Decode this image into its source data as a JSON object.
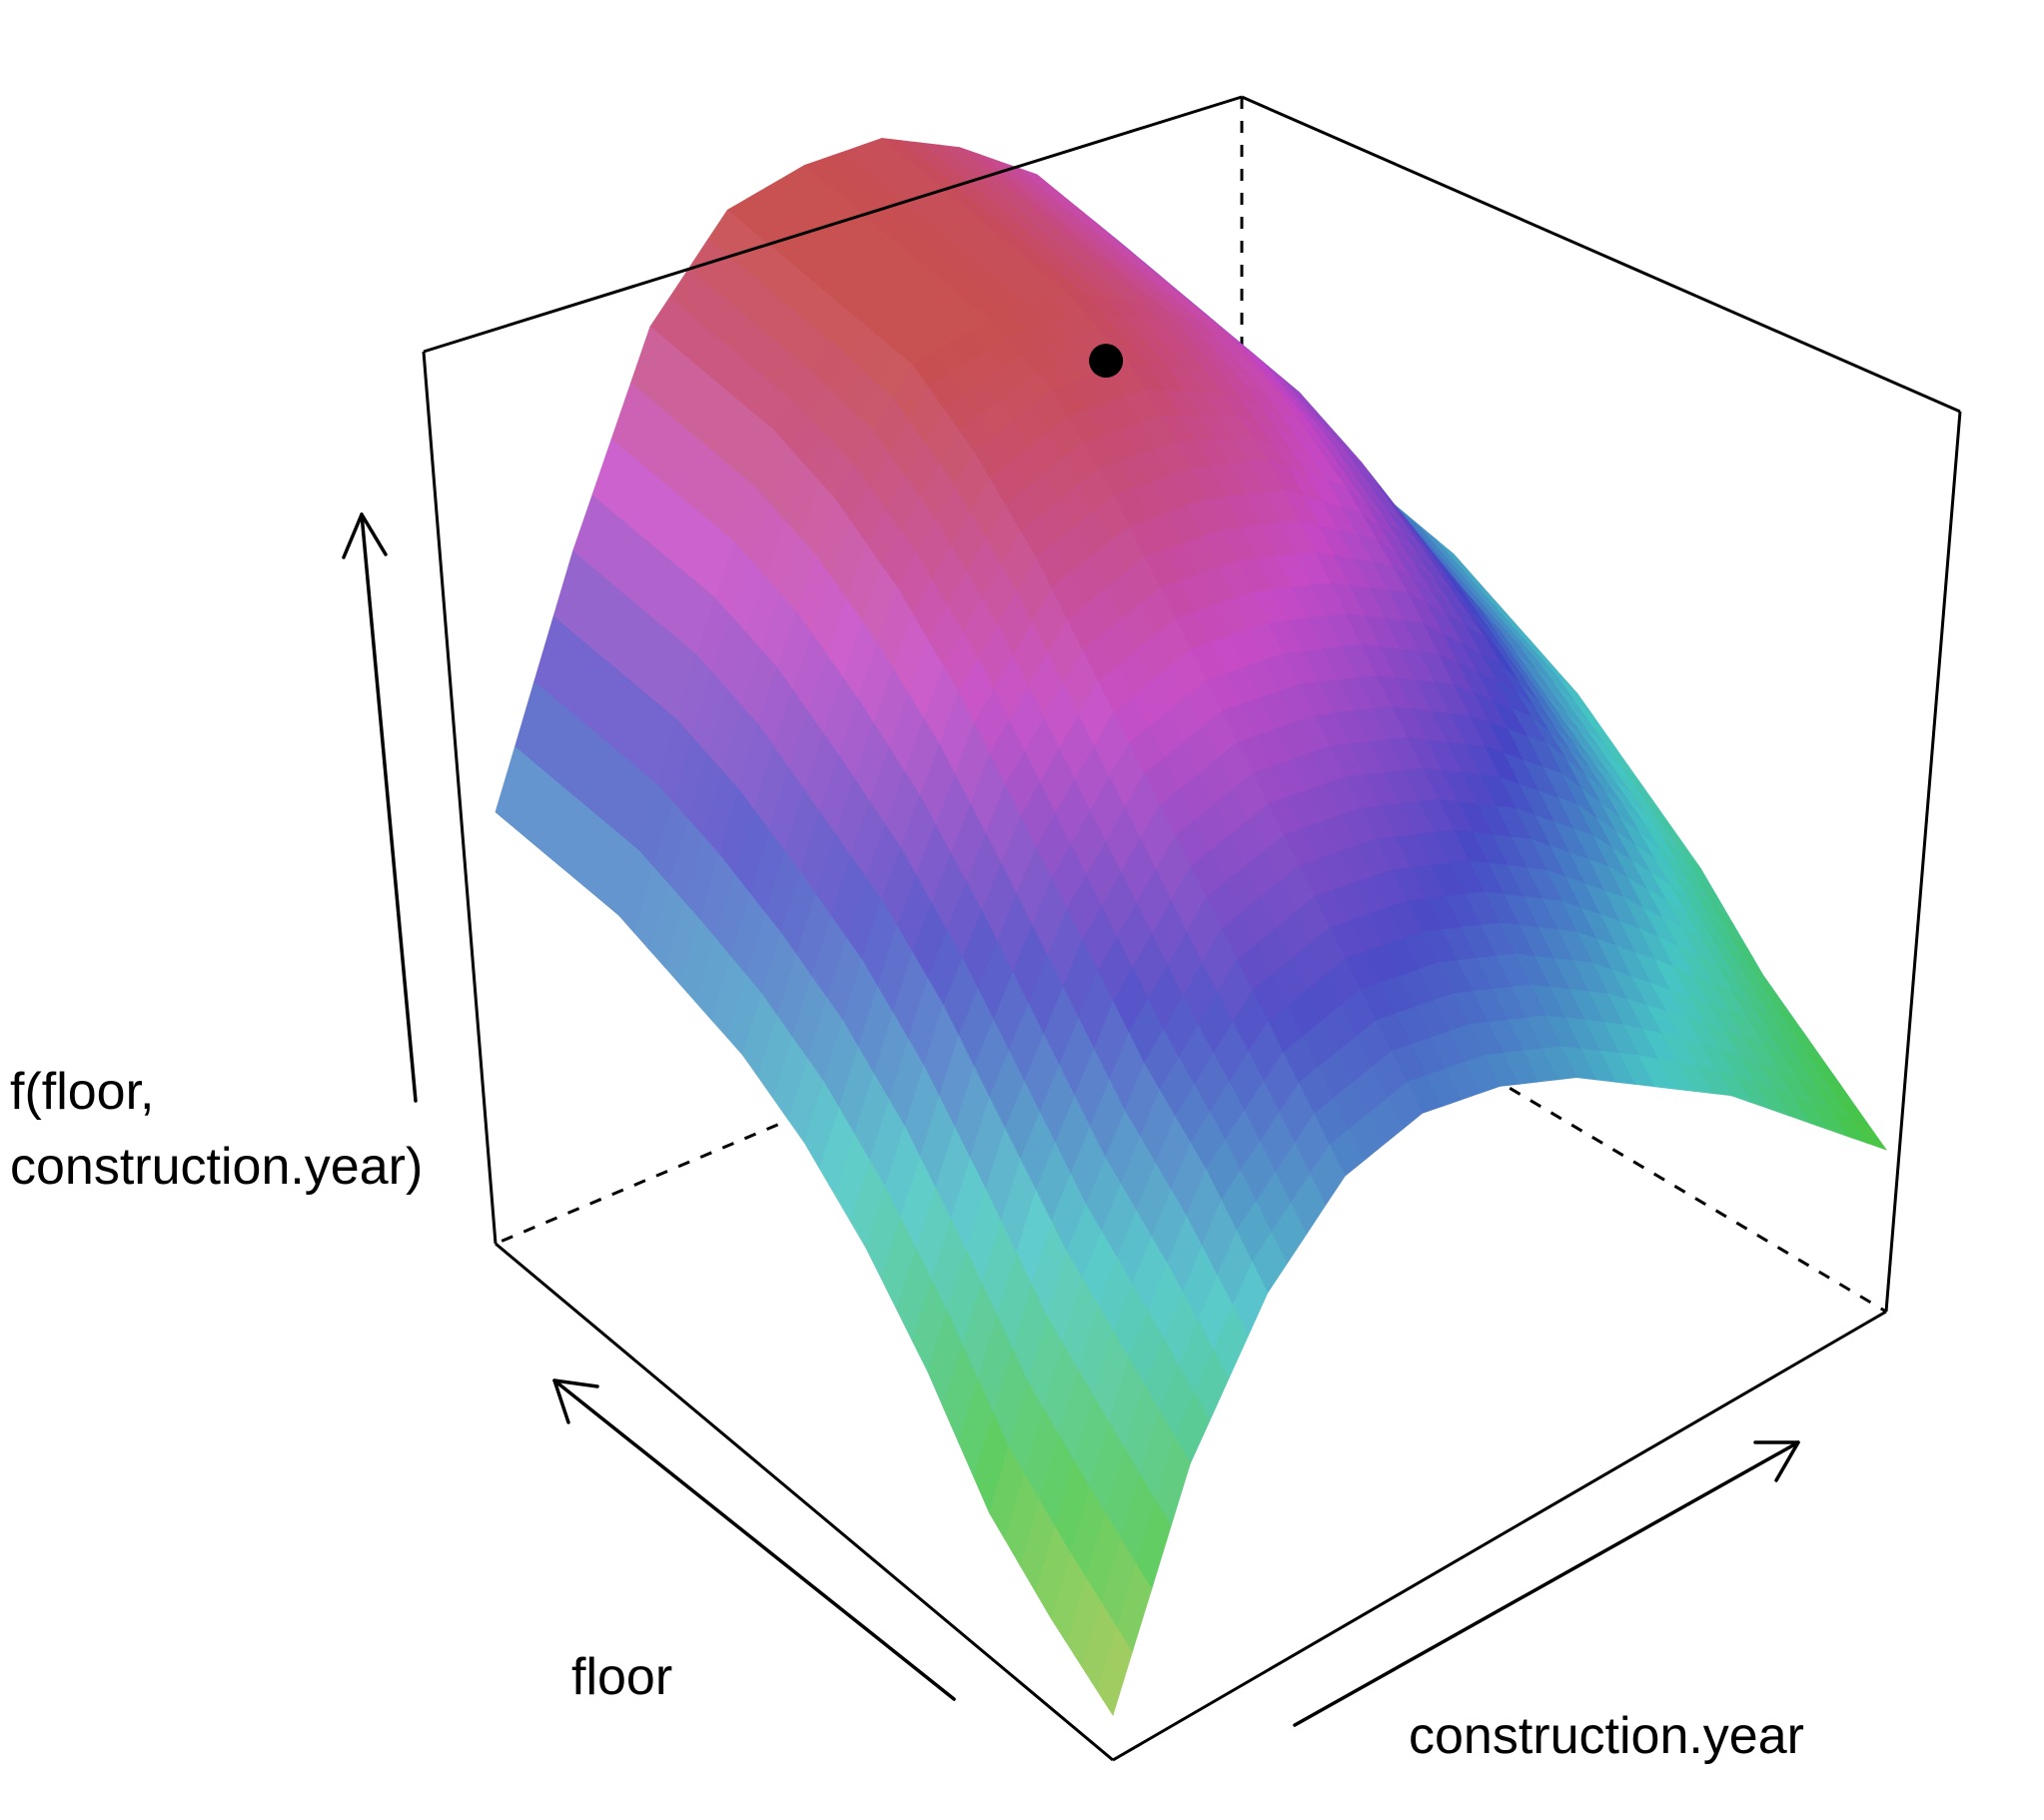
{
  "chart_data": {
    "type": "surface",
    "title": "",
    "xlabel": "floor",
    "ylabel": "construction.year",
    "zlabel_lines": [
      "f(floor,",
      "construction.year)"
    ],
    "x_direction": "increasing toward back-left",
    "y_direction": "increasing toward right",
    "colormap": "rainbow (hue by height)",
    "x": [
      0,
      1,
      2,
      3,
      4,
      5,
      6,
      7,
      8,
      9,
      10
    ],
    "y": [
      0,
      0.1,
      0.2,
      0.3,
      0.4,
      0.5,
      0.6,
      0.7,
      0.8,
      0.9,
      1.0
    ],
    "z": [
      [
        0.05,
        0.28,
        0.42,
        0.5,
        0.52,
        0.5,
        0.46,
        0.4,
        0.34,
        0.26,
        0.18
      ],
      [
        0.1,
        0.34,
        0.5,
        0.58,
        0.6,
        0.58,
        0.54,
        0.48,
        0.4,
        0.32,
        0.22
      ],
      [
        0.16,
        0.4,
        0.56,
        0.66,
        0.68,
        0.66,
        0.62,
        0.56,
        0.48,
        0.38,
        0.26
      ],
      [
        0.26,
        0.48,
        0.64,
        0.74,
        0.76,
        0.74,
        0.7,
        0.64,
        0.56,
        0.44,
        0.32
      ],
      [
        0.34,
        0.56,
        0.72,
        0.82,
        0.84,
        0.82,
        0.78,
        0.72,
        0.62,
        0.48,
        0.36
      ],
      [
        0.4,
        0.62,
        0.8,
        0.9,
        0.92,
        0.9,
        0.86,
        0.78,
        0.66,
        0.52,
        0.4
      ],
      [
        0.44,
        0.66,
        0.86,
        0.96,
        0.98,
        0.96,
        0.9,
        0.82,
        0.7,
        0.54,
        0.42
      ],
      [
        0.46,
        0.7,
        0.9,
        1.0,
        1.0,
        0.98,
        0.92,
        0.84,
        0.72,
        0.56,
        0.44
      ],
      [
        0.48,
        0.72,
        0.92,
        1.0,
        1.0,
        0.98,
        0.92,
        0.84,
        0.72,
        0.56,
        0.44
      ],
      [
        0.48,
        0.72,
        0.92,
        1.0,
        1.0,
        0.98,
        0.92,
        0.84,
        0.72,
        0.56,
        0.44
      ],
      [
        0.48,
        0.72,
        0.92,
        1.0,
        1.0,
        0.98,
        0.92,
        0.84,
        0.72,
        0.56,
        0.44
      ]
    ],
    "highlight_point": {
      "floor": 7,
      "construction.year": 0.55,
      "f": 0.88
    },
    "grid": false,
    "legend": "none"
  }
}
